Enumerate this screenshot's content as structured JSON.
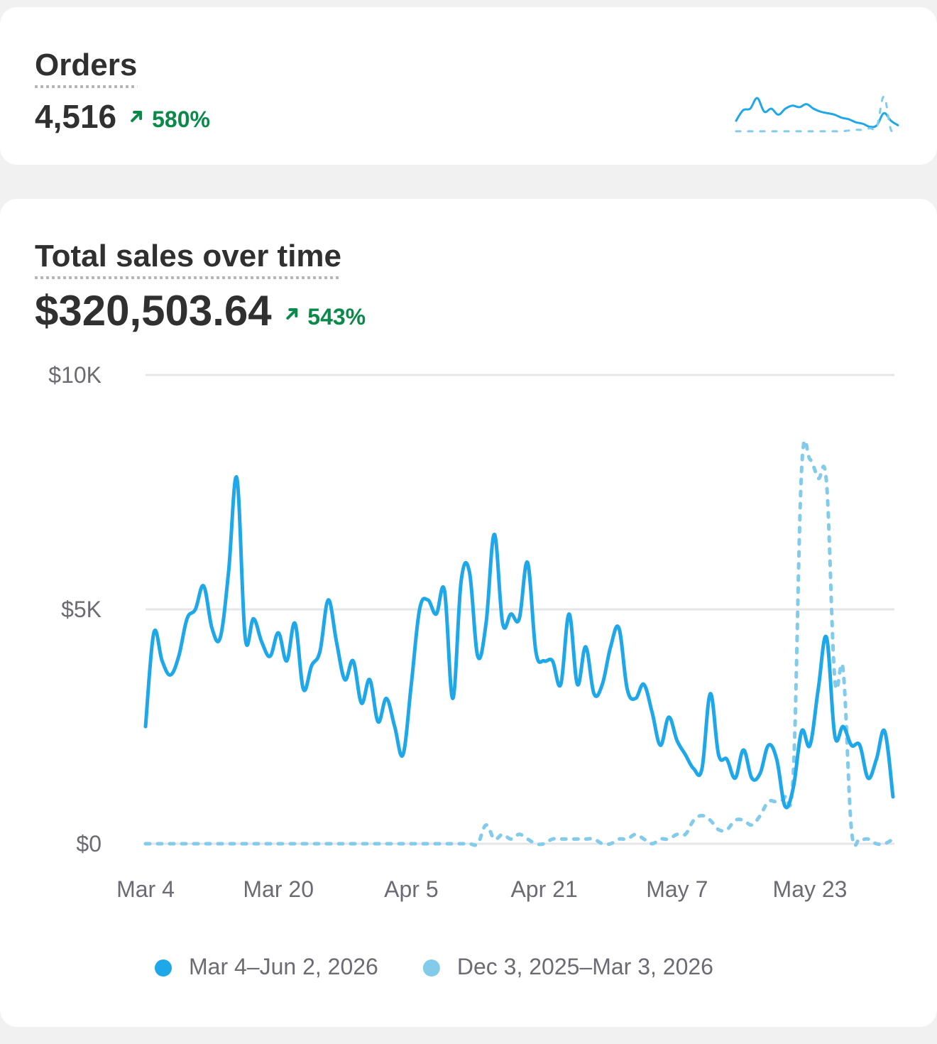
{
  "chart_data": [
    {
      "type": "sparkline",
      "title": "Orders",
      "headline": "4,516",
      "change": "580%",
      "series": [
        {
          "color": "#1ea7e9",
          "line_style": "solid",
          "values": [
            18,
            32,
            34,
            48,
            30,
            34,
            26,
            34,
            38,
            36,
            40,
            34,
            30,
            28,
            26,
            22,
            20,
            16,
            14,
            10,
            12,
            28,
            18,
            12
          ]
        },
        {
          "color": "#82cbea",
          "line_style": "dashed",
          "values": [
            4,
            4,
            4,
            4,
            4,
            4,
            4,
            4,
            4,
            4,
            4,
            4,
            4,
            4,
            4,
            4,
            5,
            6,
            6,
            8,
            10,
            50,
            6,
            2
          ]
        }
      ]
    },
    {
      "type": "line",
      "title": "Total sales over time",
      "headline": "$320,503.64",
      "change": "543%",
      "categories": [
        "Mar 4",
        null,
        null,
        null,
        null,
        null,
        null,
        null,
        null,
        null,
        null,
        null,
        null,
        null,
        null,
        null,
        "Mar 20",
        null,
        null,
        null,
        null,
        null,
        null,
        null,
        null,
        null,
        null,
        null,
        null,
        null,
        null,
        null,
        "Apr 5",
        null,
        null,
        null,
        null,
        null,
        null,
        null,
        null,
        null,
        null,
        null,
        null,
        null,
        null,
        null,
        "Apr 21",
        null,
        null,
        null,
        null,
        null,
        null,
        null,
        null,
        null,
        null,
        null,
        null,
        null,
        null,
        null,
        "May 7",
        null,
        null,
        null,
        null,
        null,
        null,
        null,
        null,
        null,
        null,
        null,
        null,
        null,
        null,
        null,
        "May 23",
        null,
        null,
        null,
        null,
        null,
        null,
        null,
        null,
        null,
        null
      ],
      "series": [
        {
          "name": "Mar 4–Jun 2, 2026",
          "color": "#1ea7e9",
          "line_style": "solid",
          "values": [
            2500,
            4500,
            3900,
            3600,
            4000,
            4800,
            5000,
            5500,
            4600,
            4400,
            5800,
            7800,
            4400,
            4800,
            4300,
            4000,
            4500,
            3900,
            4700,
            3300,
            3800,
            4100,
            5200,
            4300,
            3500,
            3900,
            3000,
            3500,
            2600,
            3100,
            2500,
            1900,
            3400,
            5000,
            5200,
            4900,
            5400,
            3100,
            5600,
            5800,
            4000,
            4700,
            6600,
            4700,
            4900,
            4800,
            6000,
            4100,
            3900,
            3900,
            3400,
            4900,
            3400,
            4200,
            3200,
            3400,
            4200,
            4600,
            3300,
            3100,
            3400,
            2800,
            2100,
            2700,
            2200,
            1900,
            1600,
            1600,
            3200,
            1900,
            1800,
            1400,
            2000,
            1400,
            1500,
            2100,
            1800,
            800,
            1200,
            2400,
            2100,
            3300,
            4400,
            2300,
            2500,
            2100,
            2100,
            1400,
            1800,
            2400,
            1000
          ]
        },
        {
          "name": "Dec 3, 2025–Mar 3, 2026",
          "color": "#82cbea",
          "line_style": "dashed",
          "values": [
            0,
            0,
            0,
            0,
            0,
            0,
            0,
            0,
            0,
            0,
            0,
            0,
            0,
            0,
            0,
            0,
            0,
            0,
            0,
            0,
            0,
            0,
            0,
            0,
            0,
            0,
            0,
            0,
            0,
            0,
            0,
            0,
            0,
            0,
            0,
            0,
            0,
            0,
            0,
            0,
            0,
            400,
            100,
            200,
            100,
            200,
            100,
            0,
            0,
            100,
            100,
            100,
            100,
            100,
            100,
            0,
            0,
            100,
            100,
            200,
            100,
            0,
            100,
            100,
            200,
            200,
            500,
            600,
            500,
            300,
            300,
            500,
            500,
            400,
            600,
            900,
            900,
            1000,
            1500,
            8000,
            8200,
            7800,
            7700,
            3500,
            3700,
            300,
            100,
            100,
            0,
            0,
            100
          ]
        }
      ],
      "ylim": [
        0,
        10000
      ],
      "yticks": [
        {
          "value": 0,
          "label": "$0"
        },
        {
          "value": 5000,
          "label": "$5K"
        },
        {
          "value": 10000,
          "label": "$10K"
        }
      ],
      "grid": true,
      "legend": "bottom"
    }
  ]
}
